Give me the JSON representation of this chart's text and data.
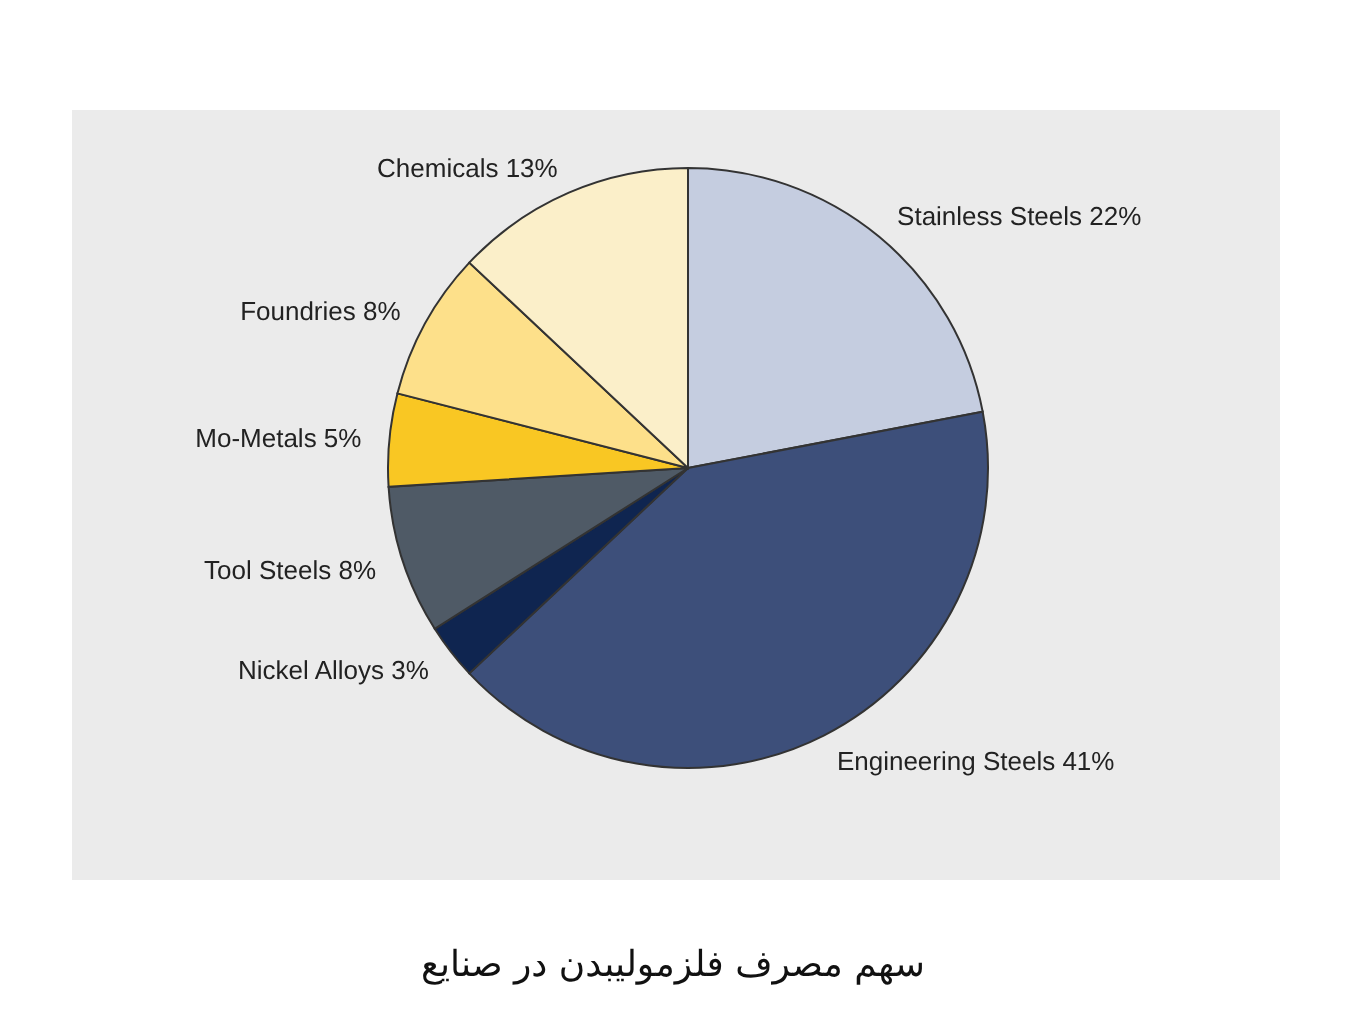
{
  "chart_data": {
    "type": "pie",
    "categories": [
      "Stainless Steels",
      "Engineering Steels",
      "Nickel Alloys",
      "Tool Steels",
      "Mo-Metals",
      "Foundries",
      "Chemicals"
    ],
    "values": [
      22,
      41,
      3,
      8,
      5,
      8,
      13
    ],
    "value_labels": [
      "22%",
      "41%",
      "3%",
      "8%",
      "5%",
      "8%",
      "13%"
    ],
    "colors": [
      "#c5cde0",
      "#3d4f7a",
      "#0f2550",
      "#4f5a66",
      "#f9c723",
      "#fde08a",
      "#fbefc9"
    ],
    "annotations": [
      "سهم مصرف فلزمولیبدن در صنایع"
    ]
  }
}
